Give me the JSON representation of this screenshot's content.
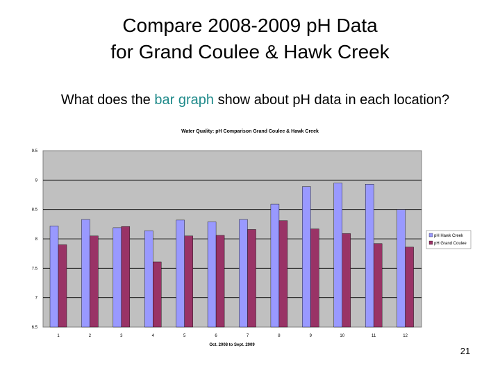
{
  "slide": {
    "title_line1": "Compare 2008-2009 pH Data",
    "title_line2": "for Grand Coulee & Hawk Creek",
    "question_before": "What does the",
    "question_link": "bar graph",
    "question_after": "show about pH data in each location?",
    "page_number": "21"
  },
  "colors": {
    "hawk_creek": "#9999ff",
    "grand_coulee": "#993366",
    "plot_background": "#c0c0c0",
    "gridline": "#000000"
  },
  "chart_data": {
    "type": "bar",
    "title": "Water Quality: pH Comparison Grand Coulee & Hawk Creek",
    "xlabel": "Oct. 2008 to Sept. 2009",
    "ylabel": "",
    "categories": [
      "1",
      "2",
      "3",
      "4",
      "5",
      "6",
      "7",
      "8",
      "9",
      "10",
      "11",
      "12"
    ],
    "yticks": [
      "6.5",
      "7",
      "7.5",
      "8",
      "8.5",
      "9",
      "9.5"
    ],
    "ylim": [
      6.5,
      9.5
    ],
    "grid": true,
    "legend_position": "right",
    "series": [
      {
        "name": "pH Hawk Creek",
        "values": [
          8.22,
          8.33,
          8.19,
          8.14,
          8.32,
          8.29,
          8.33,
          8.59,
          8.89,
          8.95,
          8.93,
          8.5
        ]
      },
      {
        "name": "pH Grand Coulee",
        "values": [
          7.9,
          8.05,
          8.21,
          7.61,
          8.05,
          8.06,
          8.16,
          8.31,
          8.17,
          8.09,
          7.92,
          7.86
        ]
      }
    ]
  }
}
